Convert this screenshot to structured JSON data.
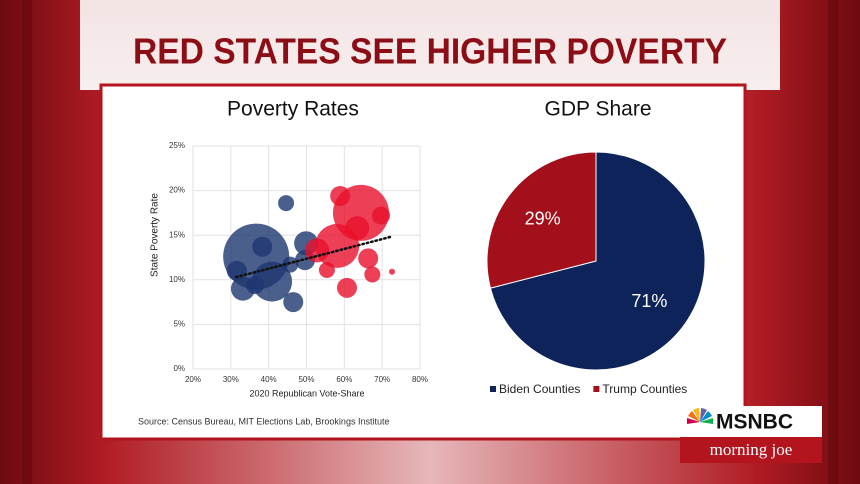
{
  "header": {
    "title": "RED STATES SEE HIGHER POVERTY"
  },
  "chart_data": [
    {
      "type": "scatter",
      "title": "Poverty Rates",
      "x_label": "2020 Republican Vote-Share",
      "y_label": "State Poverty Rate",
      "xlim": [
        20,
        80
      ],
      "xticks": [
        {
          "value": 20,
          "label": "20%"
        },
        {
          "value": 30,
          "label": "30%"
        },
        {
          "value": 40,
          "label": "40%"
        },
        {
          "value": 50,
          "label": "50%"
        },
        {
          "value": 60,
          "label": "60%"
        },
        {
          "value": 70,
          "label": "70%"
        },
        {
          "value": 80,
          "label": "80%"
        }
      ],
      "ylim": [
        0,
        25
      ],
      "yticks": [
        {
          "value": 0,
          "label": "0%"
        },
        {
          "value": 5,
          "label": "5%"
        },
        {
          "value": 10,
          "label": "10%"
        },
        {
          "value": 15,
          "label": "15%"
        },
        {
          "value": 20,
          "label": "20%"
        },
        {
          "value": 25,
          "label": "25%"
        }
      ],
      "grid": true,
      "series": [
        {
          "color": "#1e3770",
          "x": [
            36.7,
            46.5,
            44.6,
            33.2,
            31.6,
            40.9,
            38.3,
            49.9,
            49.6,
            45.7,
            36.4
          ],
          "y": [
            12.6,
            7.5,
            18.6,
            9.0,
            11.0,
            9.8,
            13.7,
            14.1,
            12.2,
            11.7,
            9.4
          ],
          "sizes": [
            33,
            10,
            8,
            12,
            10,
            20,
            10,
            12,
            10,
            8,
            9
          ]
        },
        {
          "color": "#e8102c",
          "x": [
            64.4,
            58.1,
            58.9,
            69.7,
            60.7,
            67.4,
            66.3,
            55.4,
            72.6,
            52.8,
            63.4
          ],
          "y": [
            17.5,
            13.8,
            19.4,
            17.2,
            9.1,
            10.6,
            12.4,
            11.1,
            10.9,
            13.3,
            15.8
          ],
          "sizes": [
            28,
            22,
            10,
            9,
            10,
            8,
            10,
            8,
            3,
            12,
            12
          ]
        }
      ],
      "trend": {
        "x": [
          31.4,
          72.1
        ],
        "y": [
          10.3,
          14.8
        ],
        "color": "#111111",
        "style": "dotted"
      }
    },
    {
      "type": "pie",
      "title": "GDP Share",
      "categories": [
        "Biden Counties",
        "Trump Counties"
      ],
      "values": [
        71,
        29
      ],
      "value_labels": [
        "71%",
        "29%"
      ],
      "colors": [
        "#0d2359",
        "#a30f1a"
      ],
      "legend": "bottom"
    }
  ],
  "source": "Source: Census Bureau, MIT Elections Lab, Brookings Institute",
  "logo": {
    "network": "MSNBC",
    "show": "morning joe"
  }
}
